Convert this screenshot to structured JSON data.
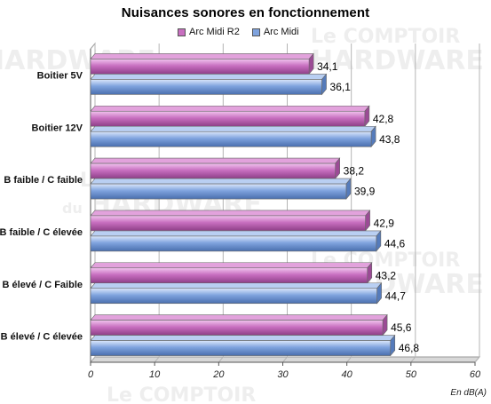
{
  "chart_data": {
    "type": "bar",
    "orientation": "horizontal",
    "title": "Nuisances sonores en fonctionnement",
    "xlabel": "En dB(A)",
    "ylabel": "",
    "xlim": [
      0,
      60
    ],
    "x_ticks": [
      "0",
      "10",
      "20",
      "30",
      "40",
      "50",
      "60"
    ],
    "grid": true,
    "legend_position": "top",
    "categories": [
      "Boitier 5V",
      "Boitier 12V",
      "B faible / C faible",
      "B faible / C élevée",
      "B élevé / C Faible",
      "B élevé / C élevée"
    ],
    "series": [
      {
        "name": "Arc Midi R2",
        "values": [
          34.1,
          42.8,
          38.2,
          42.9,
          43.2,
          45.6
        ],
        "labels": [
          "34,1",
          "42,8",
          "38,2",
          "42,9",
          "43,2",
          "45,6"
        ],
        "color": "#c86fc0"
      },
      {
        "name": "Arc Midi",
        "values": [
          36.1,
          43.8,
          39.9,
          44.6,
          44.7,
          46.8
        ],
        "labels": [
          "36,1",
          "43,8",
          "39,9",
          "44,6",
          "44,7",
          "46,8"
        ],
        "color": "#7fa3de"
      }
    ]
  },
  "watermark": {
    "line1": "Le COMPTOIR",
    "line2": "du",
    "line3": "HARDWARE"
  }
}
